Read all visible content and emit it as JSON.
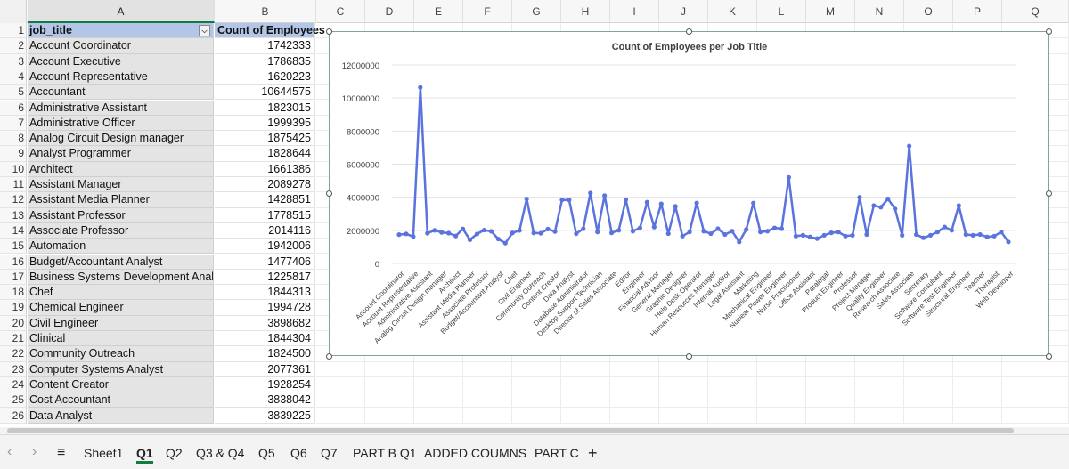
{
  "columns": [
    "A",
    "B",
    "C",
    "D",
    "E",
    "F",
    "G",
    "H",
    "I",
    "J",
    "K",
    "L",
    "M",
    "N",
    "O",
    "P",
    "Q"
  ],
  "table": {
    "header": {
      "job_title": "job_title",
      "count": "Count of Employees"
    },
    "rows": [
      {
        "title": "Account Coordinator",
        "count": "1742333"
      },
      {
        "title": "Account Executive",
        "count": "1786835"
      },
      {
        "title": "Account Representative",
        "count": "1620223"
      },
      {
        "title": "Accountant",
        "count": "10644575"
      },
      {
        "title": "Administrative Assistant",
        "count": "1823015"
      },
      {
        "title": "Administrative Officer",
        "count": "1999395"
      },
      {
        "title": "Analog Circuit Design manager",
        "count": "1875425"
      },
      {
        "title": "Analyst Programmer",
        "count": "1828644"
      },
      {
        "title": "Architect",
        "count": "1661386"
      },
      {
        "title": "Assistant Manager",
        "count": "2089278"
      },
      {
        "title": "Assistant Media Planner",
        "count": "1428851"
      },
      {
        "title": "Assistant Professor",
        "count": "1778515"
      },
      {
        "title": "Associate Professor",
        "count": "2014116"
      },
      {
        "title": "Automation",
        "count": "1942006"
      },
      {
        "title": "Budget/Accountant Analyst",
        "count": "1477406"
      },
      {
        "title": "Business Systems Development Analyst",
        "count": "1225817"
      },
      {
        "title": "Chef",
        "count": "1844313"
      },
      {
        "title": "Chemical Engineer",
        "count": "1994728"
      },
      {
        "title": "Civil Engineer",
        "count": "3898682"
      },
      {
        "title": "Clinical",
        "count": "1844304"
      },
      {
        "title": "Community Outreach",
        "count": "1824500"
      },
      {
        "title": "Computer Systems Analyst",
        "count": "2077361"
      },
      {
        "title": "Content Creator",
        "count": "1928254"
      },
      {
        "title": "Cost Accountant",
        "count": "3838042"
      },
      {
        "title": "Data Analyst",
        "count": "3839225"
      }
    ]
  },
  "chart_data": {
    "type": "line",
    "title": "Count of Employees per Job Title",
    "ylim": [
      0,
      12000000
    ],
    "yticks": [
      "0",
      "2000000",
      "4000000",
      "6000000",
      "8000000",
      "10000000",
      "12000000"
    ],
    "color": "#5a73de",
    "x_labels": [
      "Account Coordinator",
      "Account Representative",
      "Administrative Assistant",
      "Analog Circuit Design manager",
      "Architect",
      "Assistant Media Planner",
      "Associate Professor",
      "Budget/Accountant Analyst",
      "Chef",
      "Civil Engineer",
      "Community Outreach",
      "Content Creator",
      "Data Analyst",
      "Database Administrator",
      "Desktop Support Technician",
      "Director of Sales Associate",
      "Editor",
      "Engineer",
      "Financial Advisor",
      "General Manager",
      "Graphic Designer",
      "Help Desk Operator",
      "Human Resources Manager",
      "Internal Auditor",
      "Legal Assistant",
      "Marketing",
      "Mechanical Engineer",
      "Nuclear Power Engineer",
      "Nurse Practicioner",
      "Office Assistant",
      "Paralegal",
      "Product Engineer",
      "Professor",
      "Project Manager",
      "Quality Engineer",
      "Research Associate",
      "Sales Associate",
      "Secretary",
      "Software Consultant",
      "Software Test Engineer",
      "Structural Engineer",
      "Teacher",
      "Therapist",
      "Web Developer"
    ],
    "values": [
      1742333,
      1786835,
      1620223,
      10644575,
      1823015,
      1999395,
      1875425,
      1828644,
      1661386,
      2089278,
      1428851,
      1778515,
      2014116,
      1942006,
      1477406,
      1225817,
      1844313,
      1994728,
      3898682,
      1844304,
      1824500,
      2077361,
      1928254,
      3838042,
      3839225,
      1800000,
      2100000,
      4250000,
      1900000,
      4100000,
      1850000,
      2000000,
      3850000,
      1950000,
      2150000,
      3700000,
      2200000,
      3600000,
      1800000,
      3450000,
      1650000,
      1900000,
      3650000,
      1950000,
      1800000,
      2100000,
      1750000,
      1950000,
      1300000,
      2050000,
      3650000,
      1900000,
      1950000,
      2150000,
      2100000,
      5200000,
      1650000,
      1700000,
      1600000,
      1500000,
      1700000,
      1850000,
      1900000,
      1650000,
      1700000,
      4000000,
      1750000,
      3500000,
      3400000,
      3900000,
      3300000,
      1700000,
      7100000,
      1750000,
      1550000,
      1700000,
      1900000,
      2200000,
      2000000,
      3500000,
      1750000,
      1700000,
      1750000,
      1600000,
      1650000,
      1900000,
      1300000
    ]
  },
  "tabs": [
    "Sheet1",
    "Q1",
    "Q2",
    "Q3 & Q4",
    "Q5",
    "Q6",
    "Q7",
    "PART B Q1",
    "ADDED COUMNS",
    "PART C"
  ],
  "active_tab": "Q1",
  "add_sheet": "+",
  "menu_icon": "≡"
}
